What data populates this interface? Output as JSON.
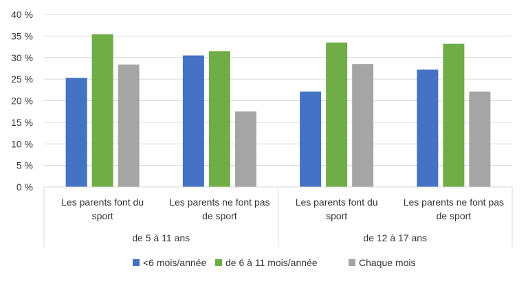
{
  "chart_data": {
    "type": "bar",
    "groups": [
      {
        "label": "de 5 à 11 ans",
        "categories": [
          "Les parents font du sport",
          "Les parents ne font pas de sport"
        ]
      },
      {
        "label": "de 12 à 17 ans",
        "categories": [
          "Les parents font du sport",
          "Les parents ne font pas de sport"
        ]
      }
    ],
    "category_lines": [
      [
        "Les parents font du",
        "sport"
      ],
      [
        "Les parents ne font pas",
        "de sport"
      ],
      [
        "Les parents font du",
        "sport"
      ],
      [
        "Les parents ne font pas",
        "de sport"
      ]
    ],
    "series": [
      {
        "name": "<6 mois/année",
        "color": "#4472c4",
        "values": [
          25.3,
          30.5,
          22.1,
          27.2
        ]
      },
      {
        "name": "de 6 à 11 mois/année",
        "color": "#70ad47",
        "values": [
          35.4,
          31.5,
          33.5,
          33.2
        ]
      },
      {
        "name": "Chaque mois",
        "color": "#a5a5a5",
        "values": [
          28.4,
          17.5,
          28.5,
          22.1
        ]
      }
    ],
    "y_ticks": [
      "0 %",
      "5 %",
      "10 %",
      "15 %",
      "20 %",
      "25 %",
      "30 %",
      "35 %",
      "40 %"
    ],
    "ylim": [
      0,
      40
    ],
    "grid": true,
    "legend_position": "bottom"
  }
}
